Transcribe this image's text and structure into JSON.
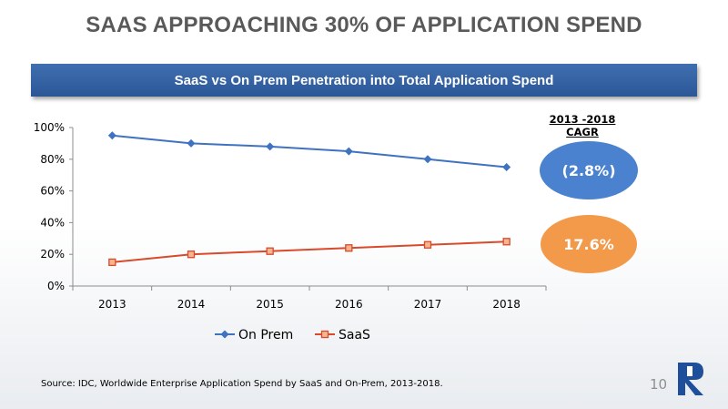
{
  "slide": {
    "title": "SAAS APPROACHING 30% OF APPLICATION SPEND",
    "banner": "SaaS vs On Prem Penetration into Total Application Spend",
    "source": "Source: IDC, Worldwide Enterprise Application Spend by SaaS and On-Prem, 2013-2018.",
    "page_number": "10"
  },
  "cagr": {
    "heading": "2013 -2018 CAGR",
    "on_prem": "(2.8%)",
    "saas": "17.6%",
    "colors": {
      "on_prem": "#4a82d0",
      "saas": "#f2994a"
    }
  },
  "chart_data": {
    "type": "line",
    "categories": [
      "2013",
      "2014",
      "2015",
      "2016",
      "2017",
      "2018"
    ],
    "series": [
      {
        "name": "On Prem",
        "values": [
          95,
          90,
          88,
          85,
          80,
          75
        ],
        "color": "#3f72c0",
        "marker": "diamond"
      },
      {
        "name": "SaaS",
        "values": [
          15,
          20,
          22,
          24,
          26,
          28
        ],
        "color": "#d84a2b",
        "marker": "square"
      }
    ],
    "y_ticks": [
      "0%",
      "20%",
      "40%",
      "60%",
      "80%",
      "100%"
    ],
    "ylim": [
      0,
      100
    ],
    "grid": false,
    "legend": "bottom"
  }
}
